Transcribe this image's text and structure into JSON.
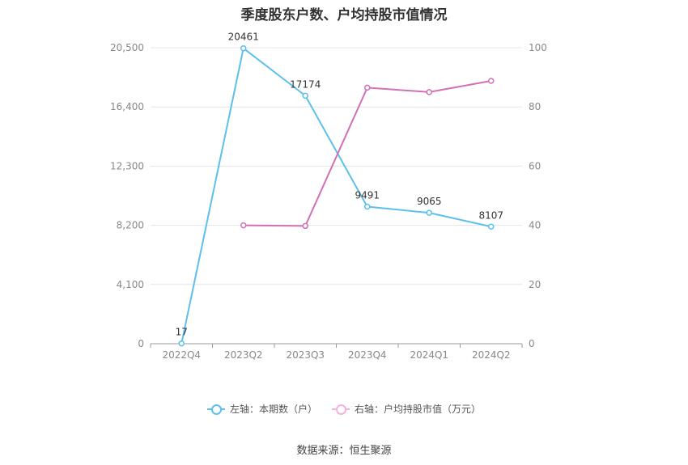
{
  "chart_data": {
    "type": "line",
    "title": "季度股东户数、户均持股市值情况",
    "categories": [
      "2022Q4",
      "2023Q2",
      "2023Q3",
      "2023Q4",
      "2024Q1",
      "2024Q2"
    ],
    "left_axis": {
      "ticks": [
        "0",
        "4,100",
        "8,200",
        "12,300",
        "16,400",
        "20,500"
      ],
      "ylim": [
        0,
        20500
      ]
    },
    "right_axis": {
      "ticks": [
        "0",
        "20",
        "40",
        "60",
        "80",
        "100"
      ],
      "ylim": [
        0,
        100
      ]
    },
    "series": [
      {
        "name": "左轴：本期数（户）",
        "axis": "left",
        "color": "#5bc0eb",
        "values": [
          17,
          20461,
          17174,
          9491,
          9065,
          8107
        ],
        "labels": [
          "17",
          "20461",
          "17174",
          "9491",
          "9065",
          "8107"
        ]
      },
      {
        "name": "右轴：户均持股市值（万元）",
        "axis": "right",
        "color": "#d36fb4",
        "values": [
          null,
          40,
          39.8,
          86.5,
          85,
          88.8
        ]
      }
    ],
    "grid": true,
    "legend_position": "bottom"
  },
  "footer": {
    "source": "数据来源：恒生聚源"
  }
}
